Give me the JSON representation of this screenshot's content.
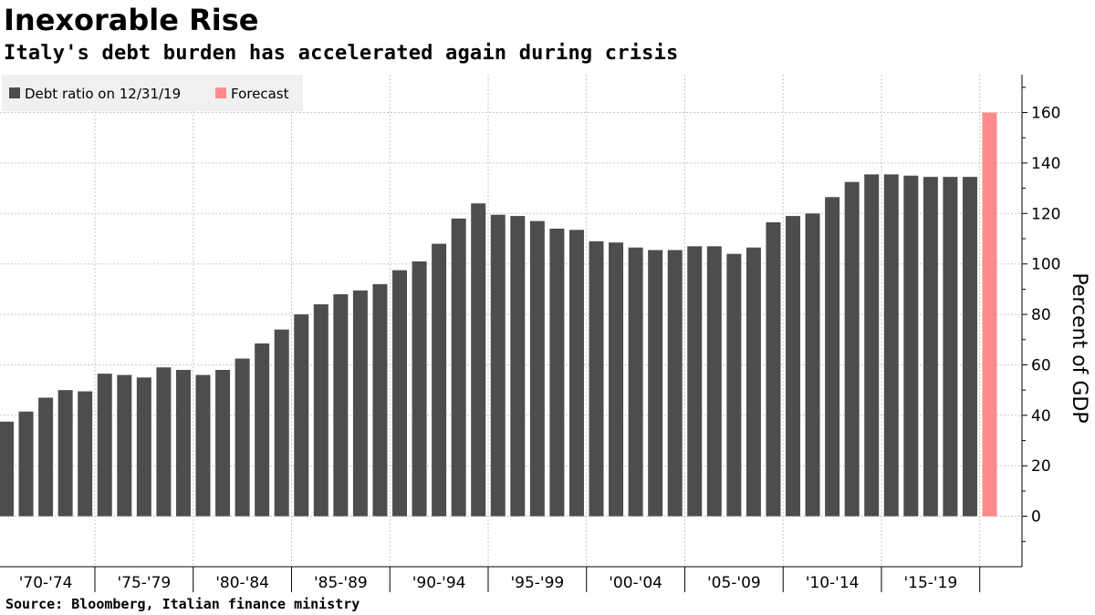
{
  "header": {
    "title": "Inexorable Rise",
    "subtitle": "Italy's debt burden has accelerated again during crisis"
  },
  "footer": {
    "source": "Source:  Bloomberg, Italian finance ministry"
  },
  "chart_data": {
    "type": "bar",
    "title": "Inexorable Rise",
    "subtitle": "Italy's debt burden has accelerated again during crisis",
    "xlabel": "",
    "ylabel": "Percent of GDP",
    "ylim": [
      -20,
      175
    ],
    "yticks": [
      0,
      20,
      40,
      60,
      80,
      100,
      120,
      140,
      160
    ],
    "grid": true,
    "legend_position": "top-left",
    "categories": [
      "1970",
      "1971",
      "1972",
      "1973",
      "1974",
      "1975",
      "1976",
      "1977",
      "1978",
      "1979",
      "1980",
      "1981",
      "1982",
      "1983",
      "1984",
      "1985",
      "1986",
      "1987",
      "1988",
      "1989",
      "1990",
      "1991",
      "1992",
      "1993",
      "1994",
      "1995",
      "1996",
      "1997",
      "1998",
      "1999",
      "2000",
      "2001",
      "2002",
      "2003",
      "2004",
      "2005",
      "2006",
      "2007",
      "2008",
      "2009",
      "2010",
      "2011",
      "2012",
      "2013",
      "2014",
      "2015",
      "2016",
      "2017",
      "2018",
      "2019",
      "2020"
    ],
    "x_tick_labels": [
      "'70-'74",
      "'75-'79",
      "'80-'84",
      "'85-'89",
      "'90-'94",
      "'95-'99",
      "'00-'04",
      "'05-'09",
      "'10-'14",
      "'15-'19"
    ],
    "series": [
      {
        "name": "Debt ratio on 12/31/19",
        "color": "#4d4d4d",
        "values": [
          37.5,
          41.5,
          47,
          50,
          49.5,
          56.5,
          56,
          55,
          59,
          58,
          56,
          58,
          62.5,
          68.5,
          74,
          80,
          84,
          88,
          89.5,
          92,
          97.5,
          101,
          108,
          118,
          124,
          119.5,
          119,
          117,
          114,
          113.5,
          109,
          108.5,
          106.5,
          105.5,
          105.5,
          107,
          107,
          104,
          106.5,
          116.5,
          119,
          120,
          126.5,
          132.5,
          135.5,
          135.5,
          135,
          134.5,
          134.5,
          134.5,
          null
        ]
      },
      {
        "name": "Forecast",
        "color": "#ff8a8a",
        "values": [
          null,
          null,
          null,
          null,
          null,
          null,
          null,
          null,
          null,
          null,
          null,
          null,
          null,
          null,
          null,
          null,
          null,
          null,
          null,
          null,
          null,
          null,
          null,
          null,
          null,
          null,
          null,
          null,
          null,
          null,
          null,
          null,
          null,
          null,
          null,
          null,
          null,
          null,
          null,
          null,
          null,
          null,
          null,
          null,
          null,
          null,
          null,
          null,
          null,
          null,
          160
        ]
      }
    ]
  }
}
